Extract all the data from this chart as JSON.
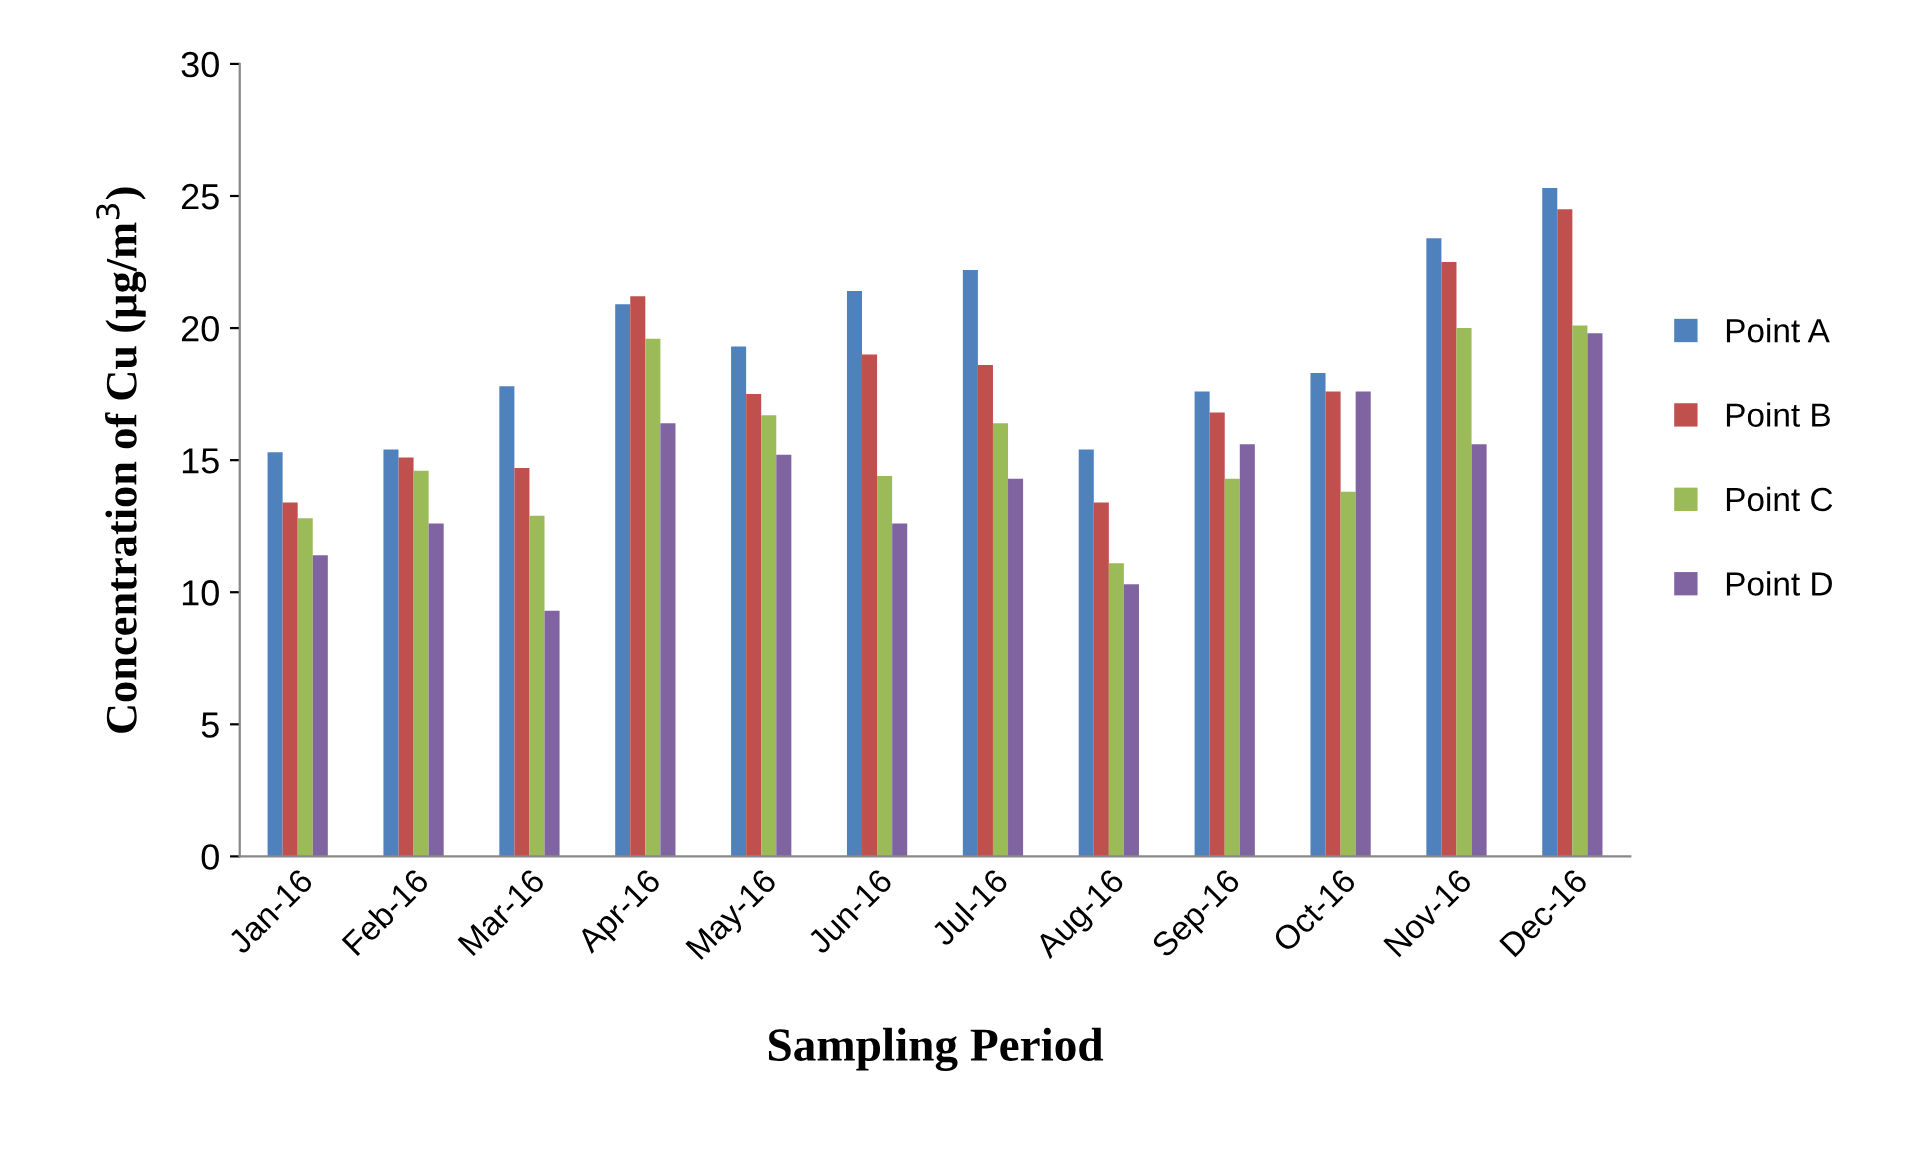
{
  "chart_data": {
    "type": "bar",
    "xlabel": "Sampling Period",
    "ylabel": "Concentration of Cu (µg/m$^{3}$)",
    "categories": [
      "Jan-16",
      "Feb-16",
      "Mar-16",
      "Apr-16",
      "May-16",
      "Jun-16",
      "Jul-16",
      "Aug-16",
      "Sep-16",
      "Oct-16",
      "Nov-16",
      "Dec-16"
    ],
    "series": [
      {
        "name": "Point A",
        "color": "#4f81bd",
        "values": [
          15.3,
          15.4,
          17.8,
          20.9,
          19.3,
          21.4,
          22.2,
          15.4,
          17.6,
          18.3,
          23.4,
          25.3
        ]
      },
      {
        "name": "Point B",
        "color": "#c0504d",
        "values": [
          13.4,
          15.1,
          14.7,
          21.2,
          17.5,
          19.0,
          18.6,
          13.4,
          16.8,
          17.6,
          22.5,
          24.5
        ]
      },
      {
        "name": "Point C",
        "color": "#9bbb59",
        "values": [
          12.8,
          14.6,
          12.9,
          19.6,
          16.7,
          14.4,
          16.4,
          11.1,
          14.3,
          13.8,
          20.0,
          20.1
        ]
      },
      {
        "name": "Point D",
        "color": "#8064a2",
        "values": [
          11.4,
          12.6,
          9.3,
          16.4,
          15.2,
          12.6,
          14.3,
          10.3,
          15.6,
          17.6,
          15.6,
          19.8
        ]
      }
    ],
    "ylim": [
      0,
      30
    ],
    "yticks": [
      0,
      5,
      10,
      15,
      20,
      25,
      30
    ],
    "grid": false,
    "legend": "right"
  }
}
